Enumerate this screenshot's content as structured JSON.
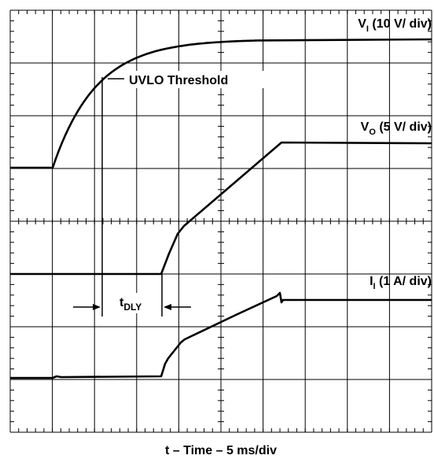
{
  "traces": [
    {
      "main": "V",
      "sub": "I",
      "rest": " (10 V/ div)"
    },
    {
      "main": "V",
      "sub": "O",
      "rest": " (5 V/ div)"
    },
    {
      "main": "I",
      "sub": "I",
      "rest": " (1 A/ div)"
    }
  ],
  "threshold_label": "UVLO Threshold",
  "delay_label": {
    "main": "t",
    "sub": "DLY"
  },
  "xlabel": "t – Time – 5 ms/div"
}
